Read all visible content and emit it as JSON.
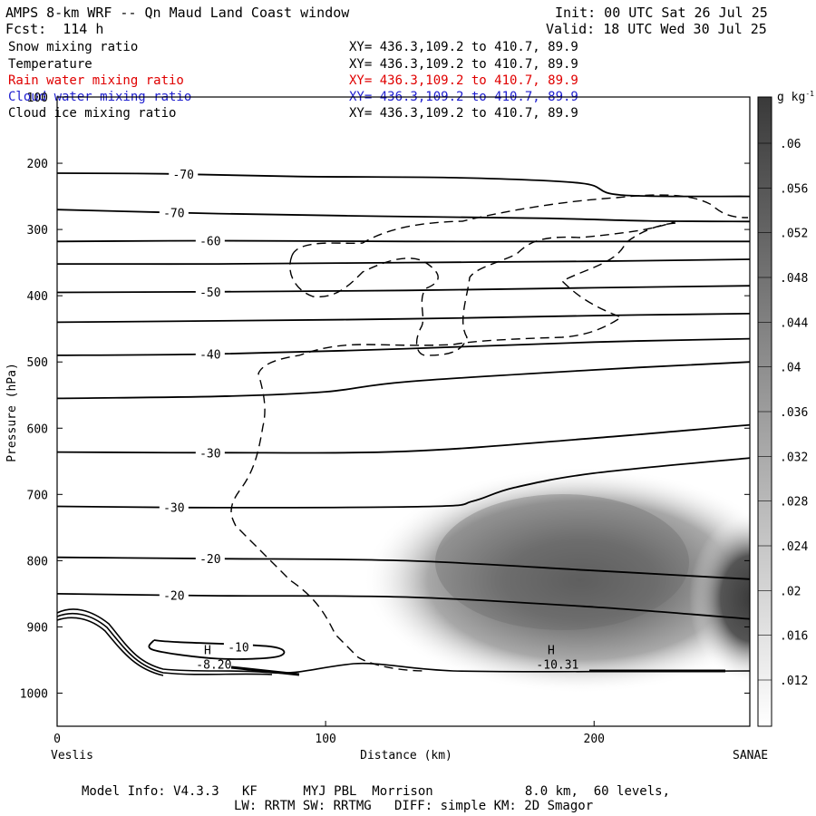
{
  "header": {
    "title": "AMPS 8-km WRF -- Qn Maud Land Coast window",
    "init": "Init: 00 UTC Sat 26 Jul 25",
    "fcst": "Fcst:  114 h",
    "valid": "Valid: 18 UTC Wed 30 Jul 25"
  },
  "fields": [
    {
      "name": "Snow mixing ratio",
      "xy": "XY= 436.3,109.2 to 410.7, 89.9",
      "color": "#000000"
    },
    {
      "name": "Temperature",
      "xy": "XY= 436.3,109.2 to 410.7, 89.9",
      "color": "#000000"
    },
    {
      "name": "Rain water mixing ratio",
      "xy": "XY= 436.3,109.2 to 410.7, 89.9",
      "color": "#e00000"
    },
    {
      "name": "Cloud water mixing ratio",
      "xy": "XY= 436.3,109.2 to 410.7, 89.9",
      "color": "#2020d0"
    },
    {
      "name": "Cloud ice mixing ratio",
      "xy": "XY= 436.3,109.2 to 410.7, 89.9",
      "color": "#000000"
    }
  ],
  "chart_data": {
    "type": "heatmap",
    "xlabel": "Distance (km)",
    "ylabel": "Pressure (hPa)",
    "xlim": [
      0,
      258
    ],
    "ylim": [
      1050,
      100
    ],
    "x_ticks": [
      0,
      100,
      200
    ],
    "y_ticks": [
      100,
      200,
      300,
      400,
      500,
      600,
      700,
      800,
      900,
      1000
    ],
    "left_endpoint": "Veslis",
    "right_endpoint": "SANAE",
    "colorbar": {
      "unit": "g kg",
      "unit_exp": "-1",
      "ticks": [
        ".012",
        ".016",
        ".02",
        ".024",
        ".028",
        ".032",
        ".036",
        ".04",
        ".044",
        ".048",
        ".052",
        ".056",
        ".06"
      ]
    },
    "temperature_contours": [
      {
        "label": "-70",
        "points": [
          [
            0,
            215
          ],
          [
            40,
            216
          ],
          [
            90,
            220
          ],
          [
            150,
            222
          ],
          [
            195,
            230
          ],
          [
            210,
            248
          ],
          [
            258,
            250
          ]
        ]
      },
      {
        "label": "-70",
        "points": [
          [
            0,
            270
          ],
          [
            60,
            276
          ],
          [
            120,
            280
          ],
          [
            180,
            283
          ],
          [
            220,
            287
          ],
          [
            258,
            288
          ]
        ]
      },
      {
        "label": "-60",
        "points": [
          [
            0,
            318
          ],
          [
            60,
            317
          ],
          [
            130,
            318
          ],
          [
            200,
            318
          ],
          [
            258,
            318
          ]
        ]
      },
      {
        "label": "",
        "points": [
          [
            0,
            352
          ],
          [
            60,
            352
          ],
          [
            130,
            350
          ],
          [
            200,
            348
          ],
          [
            258,
            345
          ]
        ]
      },
      {
        "label": "-50",
        "points": [
          [
            0,
            395
          ],
          [
            60,
            394
          ],
          [
            130,
            392
          ],
          [
            200,
            388
          ],
          [
            258,
            385
          ]
        ]
      },
      {
        "label": "",
        "points": [
          [
            0,
            440
          ],
          [
            60,
            438
          ],
          [
            130,
            435
          ],
          [
            200,
            430
          ],
          [
            258,
            427
          ]
        ]
      },
      {
        "label": "-40",
        "points": [
          [
            0,
            490
          ],
          [
            60,
            488
          ],
          [
            130,
            480
          ],
          [
            200,
            470
          ],
          [
            258,
            465
          ]
        ]
      },
      {
        "label": "",
        "points": [
          [
            0,
            555
          ],
          [
            60,
            552
          ],
          [
            100,
            545
          ],
          [
            130,
            530
          ],
          [
            200,
            512
          ],
          [
            258,
            500
          ]
        ]
      },
      {
        "label": "-30",
        "points": [
          [
            0,
            636
          ],
          [
            60,
            637
          ],
          [
            130,
            635
          ],
          [
            200,
            615
          ],
          [
            258,
            595
          ]
        ]
      },
      {
        "label": "-30",
        "points": [
          [
            0,
            718
          ],
          [
            60,
            720
          ],
          [
            140,
            718
          ],
          [
            155,
            710
          ],
          [
            170,
            690
          ],
          [
            200,
            668
          ],
          [
            258,
            645
          ]
        ]
      },
      {
        "label": "-20",
        "points": [
          [
            0,
            795
          ],
          [
            60,
            797
          ],
          [
            130,
            800
          ],
          [
            200,
            815
          ],
          [
            258,
            828
          ]
        ]
      },
      {
        "label": "-20",
        "points": [
          [
            0,
            850
          ],
          [
            60,
            853
          ],
          [
            130,
            855
          ],
          [
            200,
            870
          ],
          [
            258,
            888
          ]
        ]
      },
      {
        "label": "-10",
        "points": [
          [
            36,
            920
          ],
          [
            45,
            923
          ],
          [
            80,
            930
          ],
          [
            82,
            945
          ],
          [
            60,
            948
          ],
          [
            36,
            935
          ],
          [
            36,
            920
          ]
        ]
      }
    ],
    "high_markers": [
      {
        "label": "H",
        "value": "-8.20",
        "x": 55,
        "p": 960
      },
      {
        "label": "H",
        "value": "-10.31",
        "x": 183,
        "p": 960
      }
    ],
    "footer": {
      "line1": "Model Info: V4.3.3   KF      MYJ PBL  Morrison            8.0 km,  60 levels,",
      "line2": "LW: RRTM SW: RRTMG   DIFF: simple KM: 2D Smagor"
    }
  }
}
